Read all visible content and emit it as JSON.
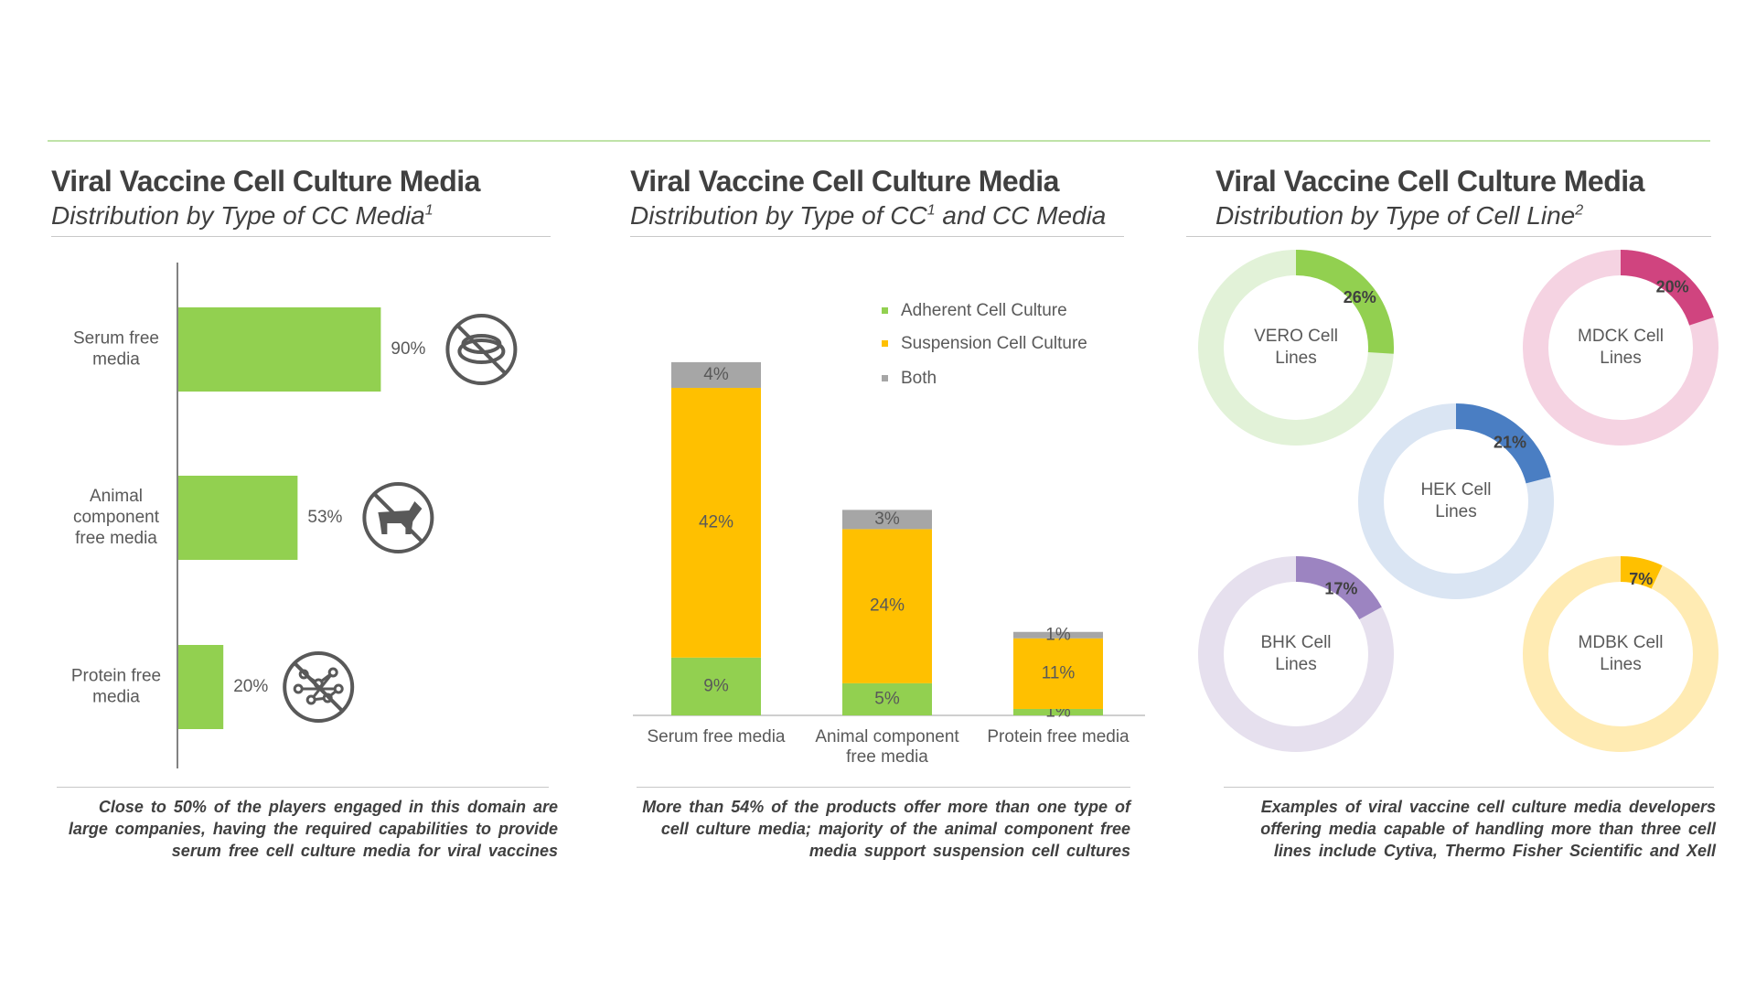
{
  "panels": [
    {
      "title": "Viral Vaccine Cell Culture Media",
      "subtitle": "Distribution by Type of CC Media",
      "subtitle_sup": "1",
      "note": "Close to 50% of the players engaged in this domain are large companies, having the required capabilities to provide serum free cell culture media for viral vaccines"
    },
    {
      "title": "Viral Vaccine Cell Culture Media",
      "subtitle_a": "Distribution by Type of CC",
      "subtitle_sup": "1",
      "subtitle_b": " and CC Media",
      "note": "More than 54% of the products offer more than one type of cell culture media; majority of the animal component free media support suspension cell cultures"
    },
    {
      "title": "Viral Vaccine Cell Culture Media",
      "subtitle": "Distribution by Type of Cell Line",
      "subtitle_sup": "2",
      "note": "Examples of viral vaccine cell culture media developers offering media capable of handling more than three cell lines include Cytiva, Thermo Fisher Scientific and Xell"
    }
  ],
  "chart_data": [
    {
      "type": "bar",
      "orientation": "horizontal",
      "categories": [
        [
          "Serum free",
          "media"
        ],
        [
          "Animal",
          "component",
          "free media"
        ],
        [
          "Protein free",
          "media"
        ]
      ],
      "values": [
        90,
        53,
        20
      ],
      "value_labels": [
        "90%",
        "53%",
        "20%"
      ],
      "icons": [
        "petri-dish-crossed-icon",
        "cow-crossed-icon",
        "protein-crossed-icon"
      ],
      "color": "#92d050",
      "icon_color": "#595959"
    },
    {
      "type": "bar",
      "stacked": true,
      "categories": [
        [
          "Serum free media"
        ],
        [
          "Animal component",
          "free media"
        ],
        [
          "Protein free media"
        ]
      ],
      "series": [
        {
          "name": "Adherent Cell Culture",
          "color": "#92d050",
          "values": [
            9,
            5,
            1
          ],
          "labels": [
            "9%",
            "5%",
            "1%"
          ]
        },
        {
          "name": "Suspension Cell Culture",
          "color": "#ffc000",
          "values": [
            42,
            24,
            11
          ],
          "labels": [
            "42%",
            "24%",
            "11%"
          ]
        },
        {
          "name": "Both",
          "color": "#a6a6a6",
          "values": [
            4,
            3,
            1
          ],
          "labels": [
            "4%",
            "3%",
            "1%"
          ]
        }
      ],
      "legend_position": "top-right"
    },
    {
      "type": "pie",
      "style": "donut",
      "items": [
        {
          "label": [
            "VERO Cell",
            "Lines"
          ],
          "value": 26,
          "value_label": "26%",
          "color": "#92d050",
          "track": "#e2f2d8"
        },
        {
          "label": [
            "MDCK Cell",
            "Lines"
          ],
          "value": 20,
          "value_label": "20%",
          "color": "#d0447f",
          "track": "#f5d3e2"
        },
        {
          "label": [
            "HEK Cell",
            "Lines"
          ],
          "value": 21,
          "value_label": "21%",
          "color": "#4a7ec3",
          "track": "#dae5f3"
        },
        {
          "label": [
            "BHK Cell",
            "Lines"
          ],
          "value": 17,
          "value_label": "17%",
          "color": "#9c84c1",
          "track": "#e6e0ee"
        },
        {
          "label": [
            "MDBK Cell",
            "Lines"
          ],
          "value": 7,
          "value_label": "7%",
          "color": "#ffc000",
          "track": "#ffebb3"
        }
      ]
    }
  ]
}
